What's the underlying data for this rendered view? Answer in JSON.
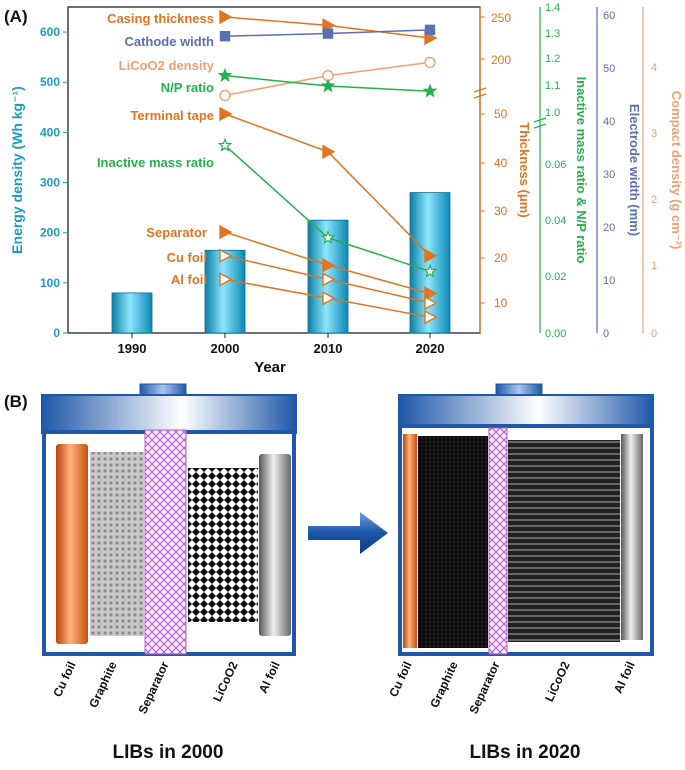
{
  "panel_a": {
    "label": "(A)",
    "chart_data": {
      "type": "bar",
      "categories": [
        "1990",
        "2000",
        "2010",
        "2020"
      ],
      "values": [
        80,
        165,
        225,
        280
      ],
      "xlabel": "Year",
      "ylabel": "Energy density (Wh kg⁻¹)",
      "ylim": [
        0,
        650
      ],
      "yticks": [
        "0",
        "100",
        "200",
        "300",
        "400",
        "500",
        "600"
      ],
      "bar_color": "#1ab0d6",
      "overlay_series": [
        {
          "name": "Casing thickness",
          "axis": "Thickness (μm)",
          "x": [
            "2000",
            "2010",
            "2020"
          ],
          "values": [
            250,
            240,
            225
          ],
          "color": "#e07420",
          "marker": "triangle-right"
        },
        {
          "name": "Cathode width",
          "axis": "Electrode width (mm)",
          "x": [
            "2000",
            "2010",
            "2020"
          ],
          "values": [
            56,
            56.5,
            57.2
          ],
          "color": "#5b6fb5",
          "marker": "square"
        },
        {
          "name": "LiCoO2 density",
          "axis": "Compact density (g cm⁻³)",
          "x": [
            "2000",
            "2010",
            "2020"
          ],
          "values": [
            3.6,
            3.9,
            4.1
          ],
          "color": "#f0a070",
          "marker": "circle-open"
        },
        {
          "name": "N/P ratio",
          "axis": "Inactive mass ratio & N/P ratio",
          "x": [
            "2000",
            "2010",
            "2020"
          ],
          "values": [
            1.14,
            1.1,
            1.08
          ],
          "color": "#22b24c",
          "marker": "star"
        },
        {
          "name": "Terminal tape",
          "axis": "Thickness (μm)",
          "x": [
            "2000",
            "2010",
            "2020"
          ],
          "values": [
            50,
            42,
            20
          ],
          "color": "#e07420",
          "marker": "triangle-right"
        },
        {
          "name": "Inactive mass ratio",
          "axis": "Inactive mass ratio & N/P ratio",
          "x": [
            "2000",
            "2010",
            "2020"
          ],
          "values": [
            0.067,
            0.034,
            0.022
          ],
          "color": "#22b24c",
          "marker": "star-open"
        },
        {
          "name": "Separator",
          "axis": "Thickness (μm)",
          "x": [
            "2000",
            "2010",
            "2020"
          ],
          "values": [
            25,
            18,
            12
          ],
          "color": "#e07420",
          "marker": "triangle-right"
        },
        {
          "name": "Cu foil",
          "axis": "Thickness (μm)",
          "x": [
            "2000",
            "2010",
            "2020"
          ],
          "values": [
            20,
            15,
            10
          ],
          "color": "#e07420",
          "marker": "triangle-right-open"
        },
        {
          "name": "Al foil",
          "axis": "Thickness (μm)",
          "x": [
            "2000",
            "2010",
            "2020"
          ],
          "values": [
            15,
            11,
            7
          ],
          "color": "#e07420",
          "marker": "triangle-right-open"
        }
      ],
      "right_axes": [
        {
          "label": "Thickness (μm)",
          "color": "#e07420",
          "lower_ticks": [
            "10",
            "20",
            "30",
            "40",
            "50"
          ],
          "upper_ticks": [
            "200",
            "250"
          ]
        },
        {
          "label": "Inactive mass ratio & N/P ratio",
          "color": "#22b24c",
          "lower_ticks": [
            "0.00",
            "0.02",
            "0.04",
            "0.06"
          ],
          "upper_ticks": [
            "1.0",
            "1.1",
            "1.2",
            "1.3",
            "1.4"
          ]
        },
        {
          "label": "Electrode width (mm)",
          "color": "#5b6fb5",
          "ticks": [
            "0",
            "10",
            "20",
            "30",
            "40",
            "50",
            "60"
          ]
        },
        {
          "label": "Compact density (g cm⁻³)",
          "color": "#f0a070",
          "ticks": [
            "0",
            "1",
            "2",
            "3",
            "4"
          ]
        }
      ]
    }
  },
  "panel_b": {
    "label": "(B)",
    "cells": [
      {
        "title": "LIBs in 2000",
        "components": [
          "Cu foil",
          "Graphite",
          "Separator",
          "LiCoO2",
          "Al foil"
        ]
      },
      {
        "title": "LIBs in 2020",
        "components": [
          "Cu foil",
          "Graphite",
          "Separator",
          "LiCoO2",
          "Al foil"
        ]
      }
    ]
  },
  "colors": {
    "casing_blue": "#1f58a8",
    "cu_orange": "#e86a1e",
    "separator_purple": "#b05cc6"
  }
}
